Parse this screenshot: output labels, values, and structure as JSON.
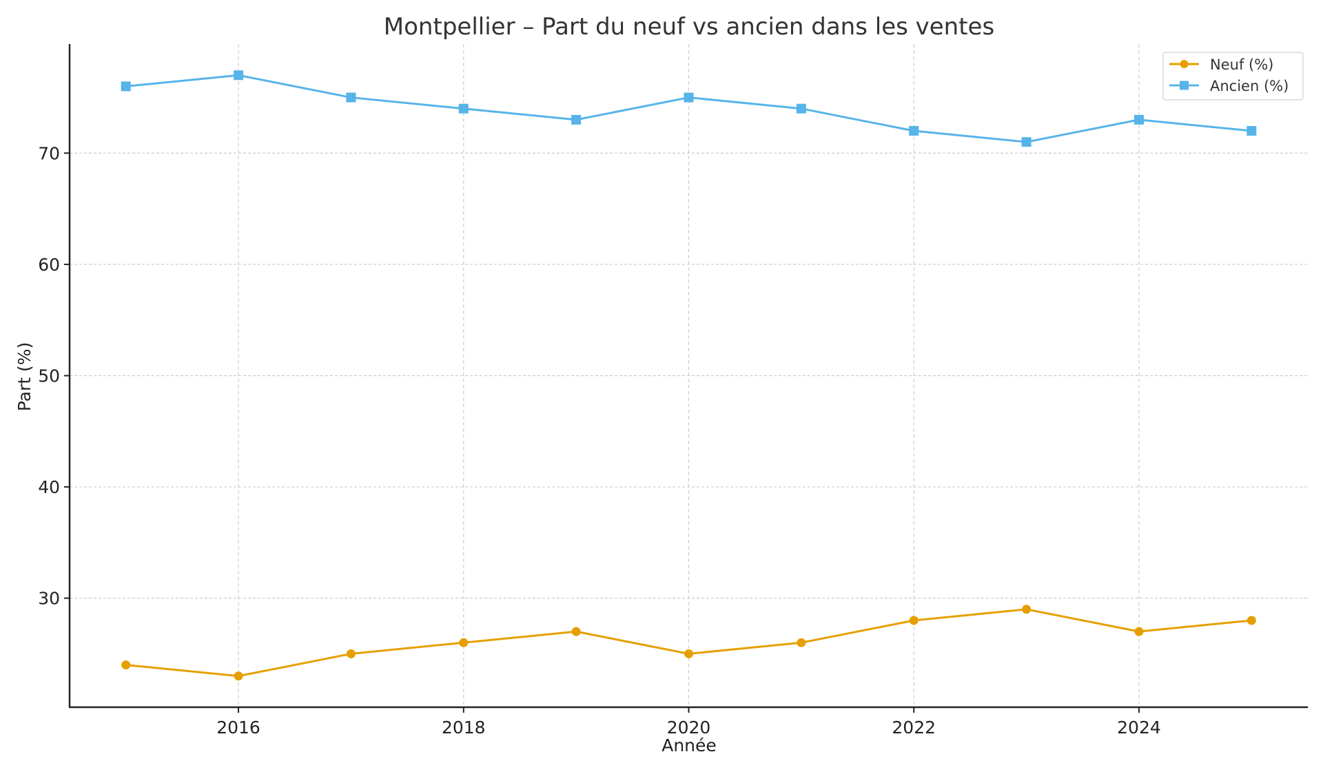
{
  "chart_data": {
    "type": "line",
    "title": "Montpellier – Part du neuf vs ancien dans les ventes",
    "xlabel": "Année",
    "ylabel": "Part (%)",
    "x": [
      2015,
      2016,
      2017,
      2018,
      2019,
      2020,
      2021,
      2022,
      2023,
      2024,
      2025
    ],
    "series": [
      {
        "name": "Neuf (%)",
        "color": "#E69F00",
        "marker": "circle",
        "values": [
          24,
          23,
          25,
          26,
          27,
          25,
          26,
          28,
          29,
          27,
          28
        ]
      },
      {
        "name": "Ancien (%)",
        "color": "#56B4E9",
        "marker": "square",
        "values": [
          76,
          77,
          75,
          74,
          73,
          75,
          74,
          72,
          71,
          73,
          72
        ]
      }
    ],
    "xticks": [
      2016,
      2018,
      2020,
      2022,
      2024
    ],
    "yticks": [
      30,
      40,
      50,
      60,
      70
    ],
    "xlim": [
      2014.5,
      2025.5
    ],
    "ylim": [
      20.2,
      79.8
    ],
    "grid": true,
    "legend_position": "upper right"
  }
}
